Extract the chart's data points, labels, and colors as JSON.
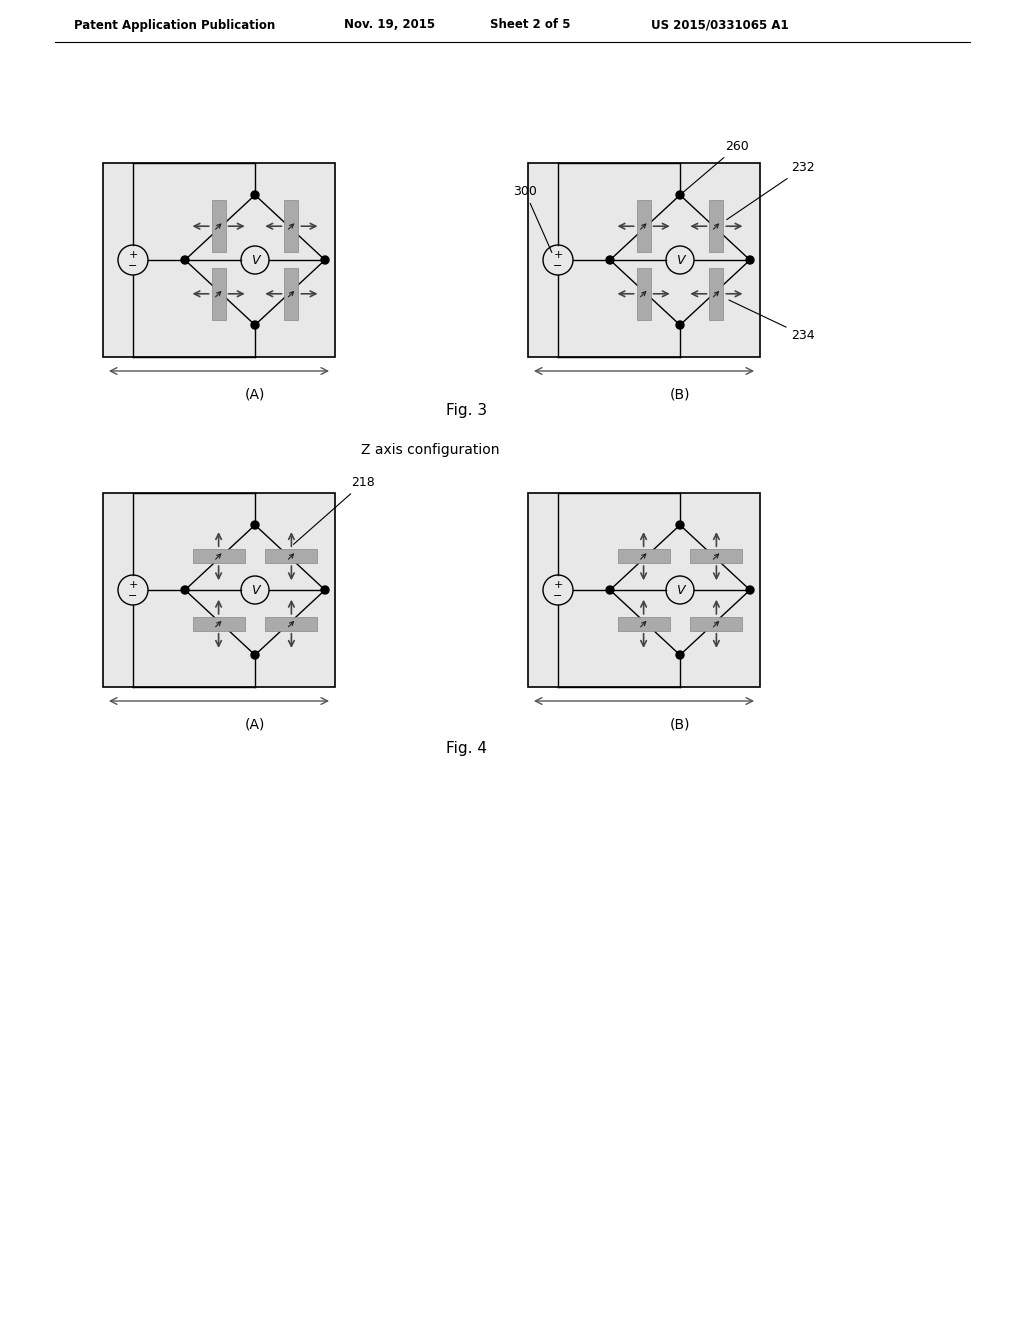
{
  "page_bg": "#ffffff",
  "panel_bg": "#e8e8e8",
  "header_text": "Patent Application Publication",
  "header_date": "Nov. 19, 2015",
  "header_sheet": "Sheet 2 of 5",
  "header_patent": "US 2015/0331065 A1",
  "fig3_label": "Fig. 3",
  "fig4_label": "Fig. 4",
  "fig4_title": "Z axis configuration",
  "sub_A": "(A)",
  "sub_B": "(B)",
  "label_260": "260",
  "label_232": "232",
  "label_234": "234",
  "label_300": "300",
  "label_218": "218",
  "sensor_color": "#aaaaaa",
  "sensor_dark": "#888888",
  "line_color": "#000000",
  "dot_color": "#000000",
  "lw": 1.0
}
